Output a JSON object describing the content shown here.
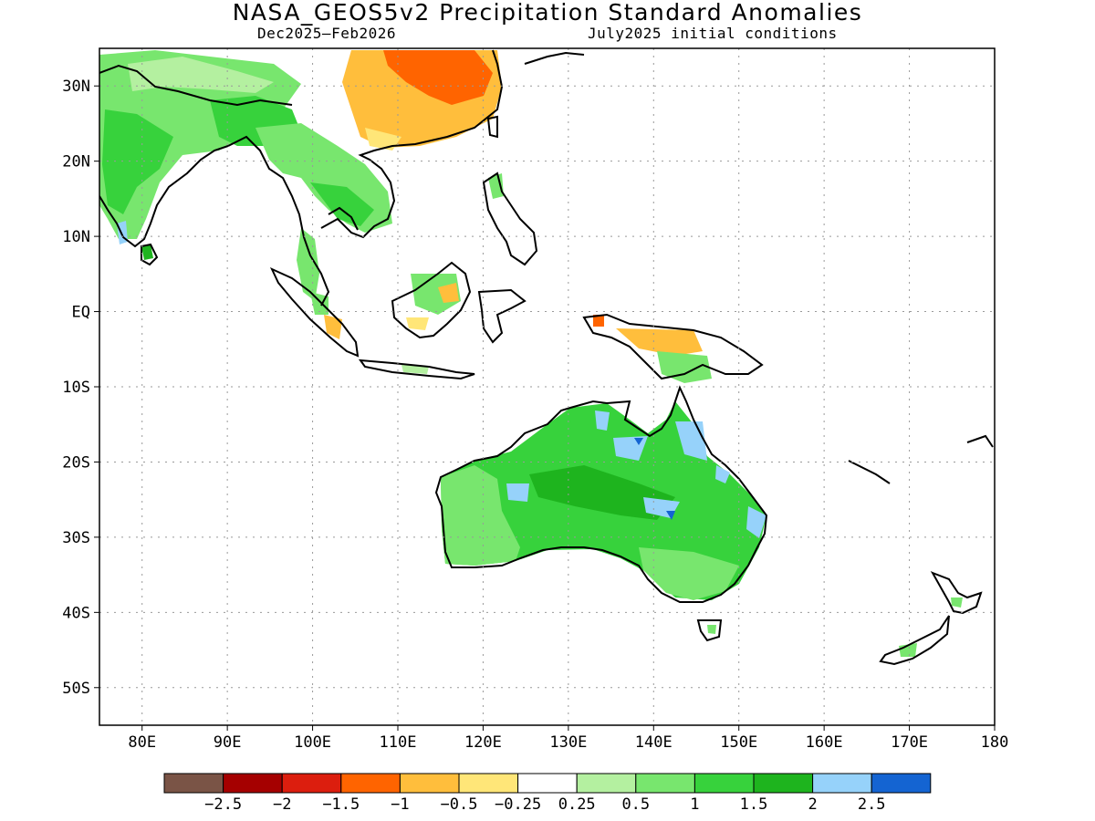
{
  "title": "NASA_GEOS5v2 Precipitation Standard Anomalies",
  "subtitle_left": "Dec2025–Feb2026",
  "subtitle_right": "July2025 initial conditions",
  "map": {
    "lon_range": [
      75,
      180
    ],
    "lat_range": [
      -55,
      35
    ],
    "x_ticks": [
      {
        "value": 80,
        "label": "80E"
      },
      {
        "value": 90,
        "label": "90E"
      },
      {
        "value": 100,
        "label": "100E"
      },
      {
        "value": 110,
        "label": "110E"
      },
      {
        "value": 120,
        "label": "120E"
      },
      {
        "value": 130,
        "label": "130E"
      },
      {
        "value": 140,
        "label": "140E"
      },
      {
        "value": 150,
        "label": "150E"
      },
      {
        "value": 160,
        "label": "160E"
      },
      {
        "value": 170,
        "label": "170E"
      },
      {
        "value": 180,
        "label": "180"
      }
    ],
    "y_ticks": [
      {
        "value": 30,
        "label": "30N"
      },
      {
        "value": 20,
        "label": "20N"
      },
      {
        "value": 10,
        "label": "10N"
      },
      {
        "value": 0,
        "label": "EQ"
      },
      {
        "value": -10,
        "label": "10S"
      },
      {
        "value": -20,
        "label": "20S"
      },
      {
        "value": -30,
        "label": "30S"
      },
      {
        "value": -40,
        "label": "40S"
      },
      {
        "value": -50,
        "label": "50S"
      }
    ],
    "grid": "dotted",
    "projection": "equirectangular"
  },
  "colorbar": {
    "colors": [
      "#7a5446",
      "#a50000",
      "#dc1e0e",
      "#ff6400",
      "#ffbe3c",
      "#ffe678",
      "#ffffff",
      "#b4f0a0",
      "#78e66e",
      "#37d23c",
      "#1eb41e",
      "#96d2fa",
      "#1464d2"
    ],
    "labels": [
      "−2.5",
      "−2",
      "−1.5",
      "−1",
      "−0.5",
      "−0.25",
      "0.25",
      "0.5",
      "1",
      "1.5",
      "2",
      "2.5"
    ]
  },
  "regions": {
    "india": "positive anomaly 0.5 to 1.5",
    "indochina": "positive anomaly 0.5 to 1.5",
    "south_china": "negative anomaly -0.5 to -1.5",
    "australia": "positive anomaly 1 to 2.5",
    "new_guinea": "mixed, slight negative north coast",
    "new_zealand": "slight positive"
  }
}
